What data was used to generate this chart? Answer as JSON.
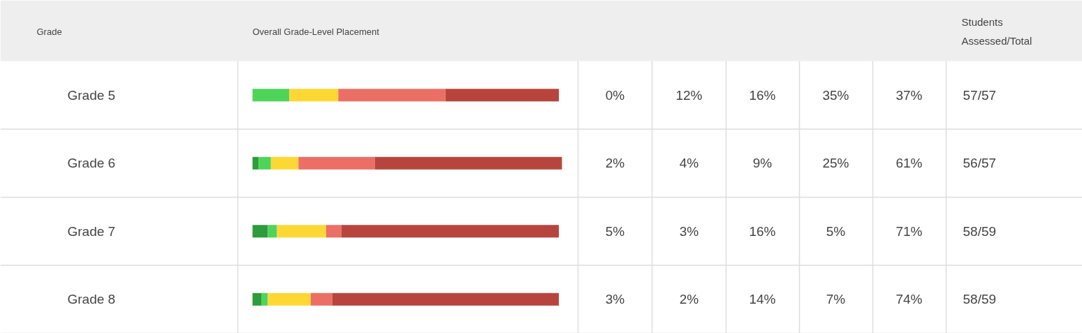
{
  "chart_data": {
    "type": "bar",
    "orientation": "horizontal",
    "stacked": true,
    "ylabel": "Grade",
    "xlabel": "Overall Grade-Level Placement",
    "categories": [
      "Grade 5",
      "Grade 6",
      "Grade 7",
      "Grade 8"
    ],
    "tick_labels": "y",
    "series": [
      {
        "color": "#2e9b3c",
        "values": [
          0,
          2,
          5,
          3
        ],
        "value_labels": [
          "0%",
          "2%",
          "5%",
          "3%"
        ]
      },
      {
        "color": "#4fd45a",
        "values": [
          12,
          4,
          3,
          2
        ],
        "value_labels": [
          "12%",
          "4%",
          "3%",
          "2%"
        ]
      },
      {
        "color": "#fdd835",
        "values": [
          16,
          9,
          16,
          14
        ],
        "value_labels": [
          "16%",
          "9%",
          "16%",
          "14%"
        ]
      },
      {
        "color": "#eb6f64",
        "values": [
          35,
          25,
          5,
          7
        ],
        "value_labels": [
          "35%",
          "25%",
          "5%",
          "7%"
        ]
      },
      {
        "color": "#b8453d",
        "values": [
          37,
          61,
          71,
          74
        ],
        "value_labels": [
          "37%",
          "61%",
          "71%",
          "74%"
        ]
      }
    ],
    "annotations": [
      "Students Assessed/Total",
      "57/57",
      "56/57",
      "58/59",
      "58/59"
    ]
  }
}
